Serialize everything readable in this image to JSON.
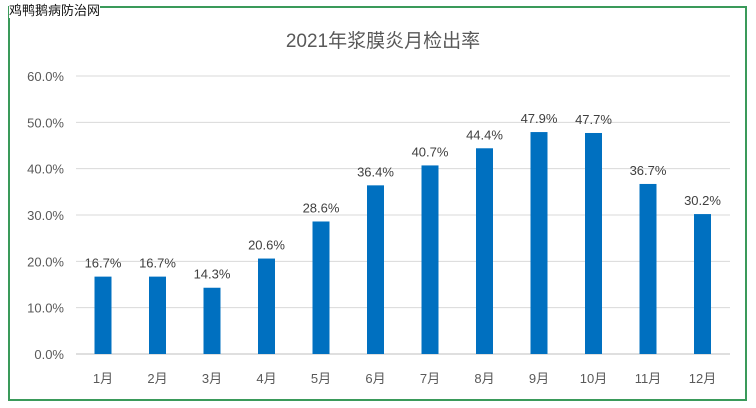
{
  "watermark": "鸡鸭鹅病防治网",
  "colors": {
    "bar": "#0070c0",
    "grid": "#d9d9d9",
    "border": "#3a9a5a"
  },
  "chart_data": {
    "type": "bar",
    "title": "2021年浆膜炎月检出率",
    "xlabel": "",
    "ylabel": "",
    "categories": [
      "1月",
      "2月",
      "3月",
      "4月",
      "5月",
      "6月",
      "7月",
      "8月",
      "9月",
      "10月",
      "11月",
      "12月"
    ],
    "values": [
      16.7,
      16.7,
      14.3,
      20.6,
      28.6,
      36.4,
      40.7,
      44.4,
      47.9,
      47.7,
      36.7,
      30.2
    ],
    "data_labels": [
      "16.7%",
      "16.7%",
      "14.3%",
      "20.6%",
      "28.6%",
      "36.4%",
      "40.7%",
      "44.4%",
      "47.9%",
      "47.7%",
      "36.7%",
      "30.2%"
    ],
    "ylim": [
      0,
      60
    ],
    "yticks": [
      "0.0%",
      "10.0%",
      "20.0%",
      "30.0%",
      "40.0%",
      "50.0%",
      "60.0%"
    ],
    "grid": true,
    "legend": "none"
  }
}
